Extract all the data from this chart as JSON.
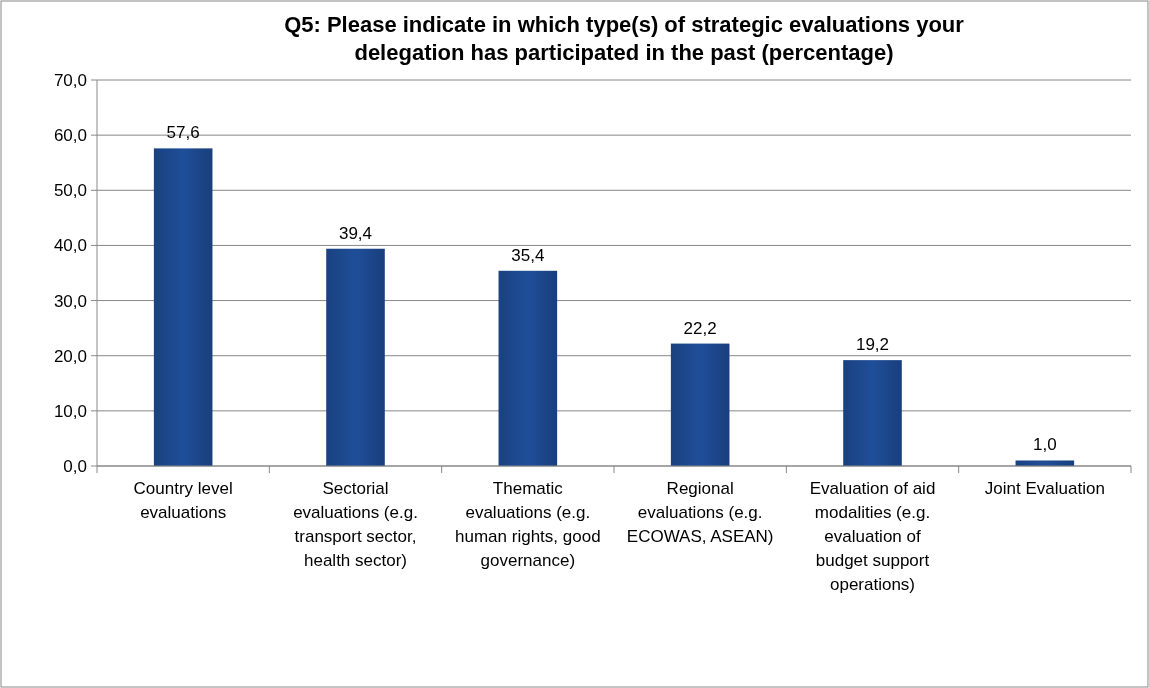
{
  "chart_data": {
    "type": "bar",
    "title": "Q5: Please indicate in which type(s) of strategic evaluations your delegation has participated in the past (percentage)",
    "categories": [
      "Country level evaluations",
      "Sectorial evaluations (e.g. transport sector, health sector)",
      "Thematic evaluations (e.g. human rights, good governance)",
      "Regional evaluations (e.g. ECOWAS, ASEAN)",
      "Evaluation of aid modalities (e.g. evaluation of budget support operations)",
      "Joint Evaluation"
    ],
    "values": [
      57.6,
      39.4,
      35.4,
      22.2,
      19.2,
      1.0
    ],
    "value_labels": [
      "57,6",
      "39,4",
      "35,4",
      "22,2",
      "19,2",
      "1,0"
    ],
    "color": "#1f4e99",
    "ylim": [
      0,
      70
    ],
    "yticks": [
      {
        "value": 0,
        "label": "0,0"
      },
      {
        "value": 10,
        "label": "10,0"
      },
      {
        "value": 20,
        "label": "20,0"
      },
      {
        "value": 30,
        "label": "30,0"
      },
      {
        "value": 40,
        "label": "40,0"
      },
      {
        "value": 50,
        "label": "50,0"
      },
      {
        "value": 60,
        "label": "60,0"
      },
      {
        "value": 70,
        "label": "70,0"
      }
    ],
    "grid": "y"
  }
}
